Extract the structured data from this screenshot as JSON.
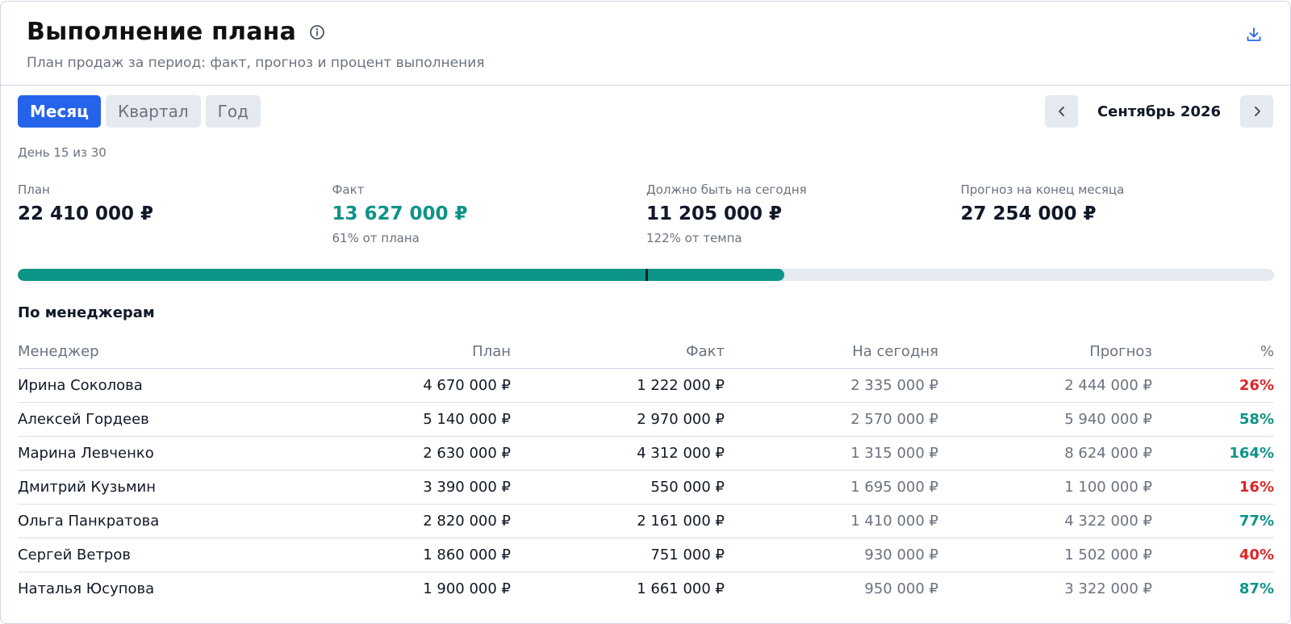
{
  "header": {
    "title": "Выполнение плана",
    "subtitle": "План продаж за период: факт, прогноз и процент выполнения",
    "info_icon": "info-icon",
    "download_icon": "download-icon"
  },
  "period_tabs": [
    {
      "label": "Месяц",
      "active": true
    },
    {
      "label": "Квартал",
      "active": false
    },
    {
      "label": "Год",
      "active": false
    }
  ],
  "nav": {
    "label": "Сентябрь 2026",
    "prev_icon": "chevron-left-icon",
    "next_icon": "chevron-right-icon"
  },
  "day_label": "День 15 из 30",
  "kpis": [
    {
      "label": "План",
      "value": "22 410 000 ₽",
      "note": ""
    },
    {
      "label": "Факт",
      "value": "13 627 000 ₽",
      "note": "61% от плана"
    },
    {
      "label": "Должно быть на сегодня",
      "value": "11 205 000 ₽",
      "note": "122% от темпа"
    },
    {
      "label": "Прогноз на конец месяца",
      "value": "27 254 000 ₽",
      "note": ""
    }
  ],
  "progress": {
    "fact_fraction": 0.61,
    "today_fraction": 0.5
  },
  "colors": {
    "accent": "#2563eb",
    "good": "#0d9488",
    "bad": "#dc2626",
    "text_muted": "#6b7280"
  },
  "table": {
    "title": "По менеджерам",
    "columns": [
      "Менеджер",
      "План",
      "Факт",
      "На сегодня",
      "Прогноз",
      "%"
    ],
    "rows": [
      {
        "name": "Ирина Соколова",
        "plan": "4 670 000 ₽",
        "fact": "1 222 000 ₽",
        "today": "2 335 000 ₽",
        "forecast": "2 444 000 ₽",
        "pct": "26%",
        "status": "bad"
      },
      {
        "name": "Алексей Гордеев",
        "plan": "5 140 000 ₽",
        "fact": "2 970 000 ₽",
        "today": "2 570 000 ₽",
        "forecast": "5 940 000 ₽",
        "pct": "58%",
        "status": "good"
      },
      {
        "name": "Марина Левченко",
        "plan": "2 630 000 ₽",
        "fact": "4 312 000 ₽",
        "today": "1 315 000 ₽",
        "forecast": "8 624 000 ₽",
        "pct": "164%",
        "status": "good"
      },
      {
        "name": "Дмитрий Кузьмин",
        "plan": "3 390 000 ₽",
        "fact": "550 000 ₽",
        "today": "1 695 000 ₽",
        "forecast": "1 100 000 ₽",
        "pct": "16%",
        "status": "bad"
      },
      {
        "name": "Ольга Панкратова",
        "plan": "2 820 000 ₽",
        "fact": "2 161 000 ₽",
        "today": "1 410 000 ₽",
        "forecast": "4 322 000 ₽",
        "pct": "77%",
        "status": "good"
      },
      {
        "name": "Сергей Ветров",
        "plan": "1 860 000 ₽",
        "fact": "751 000 ₽",
        "today": "930 000 ₽",
        "forecast": "1 502 000 ₽",
        "pct": "40%",
        "status": "bad"
      },
      {
        "name": "Наталья Юсупова",
        "plan": "1 900 000 ₽",
        "fact": "1 661 000 ₽",
        "today": "950 000 ₽",
        "forecast": "3 322 000 ₽",
        "pct": "87%",
        "status": "good"
      }
    ]
  }
}
